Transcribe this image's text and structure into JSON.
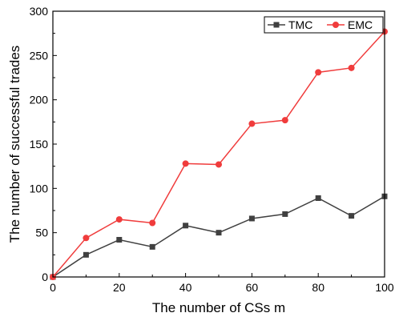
{
  "chart_data": {
    "type": "line",
    "title": "",
    "xlabel": "The number of CSs m",
    "ylabel": "The number of successful trades",
    "xlim": [
      0,
      100
    ],
    "ylim": [
      0,
      300
    ],
    "xticks": [
      0,
      20,
      40,
      60,
      80,
      100
    ],
    "yticks": [
      0,
      50,
      100,
      150,
      200,
      250,
      300
    ],
    "grid": false,
    "legend_position": "top-right",
    "x": [
      0,
      10,
      20,
      30,
      40,
      50,
      60,
      70,
      80,
      90,
      100
    ],
    "series": [
      {
        "name": "TMC",
        "marker": "square",
        "color": "#404040",
        "values": [
          0,
          25,
          42,
          34,
          58,
          50,
          66,
          71,
          89,
          69,
          91
        ]
      },
      {
        "name": "EMC",
        "marker": "circle",
        "color": "#f03c3c",
        "values": [
          0,
          44,
          65,
          61,
          128,
          127,
          173,
          177,
          231,
          236,
          277
        ]
      }
    ]
  }
}
